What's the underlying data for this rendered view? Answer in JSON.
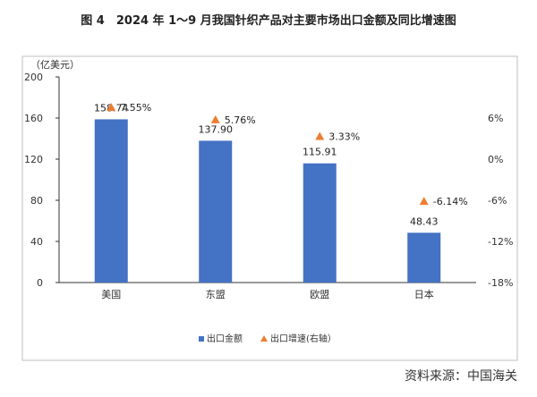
{
  "chart_data": {
    "type": "bar",
    "title": "图 4　2024 年 1～9 月我国针织产品对主要市场出口金额及同比增速图",
    "ylabel": "（亿美元）",
    "categories": [
      "美国",
      "东盟",
      "欧盟",
      "日本"
    ],
    "series": [
      {
        "name": "出口金额",
        "type": "bar",
        "axis": "left",
        "values": [
          158.74,
          137.9,
          115.91,
          48.43
        ],
        "labels": [
          "158.74",
          "137.90",
          "115.91",
          "48.43"
        ],
        "color": "#4472C4"
      },
      {
        "name": "出口增速(右轴）",
        "type": "scatter-triangle",
        "axis": "right",
        "values": [
          7.55,
          5.76,
          3.33,
          -6.14
        ],
        "labels": [
          "7.55%",
          "5.76%",
          "3.33%",
          "-6.14%"
        ],
        "color": "#ED7D31"
      }
    ],
    "ylim": [
      0,
      200
    ],
    "yticks": [
      "0",
      "40",
      "80",
      "120",
      "160",
      "200"
    ],
    "y2lim": [
      -18,
      12
    ],
    "y2ticks": [
      "-18%",
      "-12%",
      "-6%",
      "0%",
      "6%"
    ],
    "legend_position": "bottom",
    "grid": false
  },
  "source": "资料来源：中国海关"
}
